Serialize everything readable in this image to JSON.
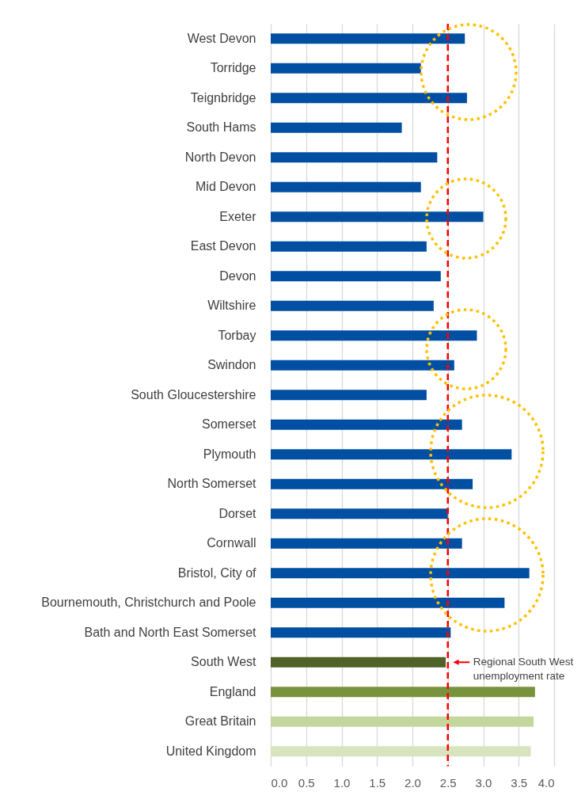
{
  "chart_data": {
    "type": "bar",
    "orientation": "horizontal",
    "categories": [
      "West Devon",
      "Torridge",
      "Teignbridge",
      "South Hams",
      "North Devon",
      "Mid Devon",
      "Exeter",
      "East Devon",
      "Devon",
      "Wiltshire",
      "Torbay",
      "Swindon",
      "South Gloucestershire",
      "Somerset",
      "Plymouth",
      "North Somerset",
      "Dorset",
      "Cornwall",
      "Bristol, City of",
      "Bournemouth, Christchurch and Poole",
      "Bath and North East Somerset",
      "South West",
      "England",
      "Great Britain",
      "United Kingdom"
    ],
    "values": [
      2.74,
      2.12,
      2.77,
      1.85,
      2.35,
      2.12,
      3.0,
      2.2,
      2.4,
      2.3,
      2.91,
      2.59,
      2.2,
      2.7,
      3.4,
      2.85,
      2.5,
      2.7,
      3.65,
      3.3,
      2.54,
      2.47,
      3.73,
      3.71,
      3.67
    ],
    "colors": [
      "#004fa3",
      "#004fa3",
      "#004fa3",
      "#004fa3",
      "#004fa3",
      "#004fa3",
      "#004fa3",
      "#004fa3",
      "#004fa3",
      "#004fa3",
      "#004fa3",
      "#004fa3",
      "#004fa3",
      "#004fa3",
      "#004fa3",
      "#004fa3",
      "#004fa3",
      "#004fa3",
      "#004fa3",
      "#004fa3",
      "#004fa3",
      "#4f6228",
      "#77933c",
      "#c3d69b",
      "#d7e4bd"
    ],
    "xlim": [
      0,
      4
    ],
    "xticks": [
      {
        "value": 0,
        "label": "0.0"
      },
      0.5,
      {
        "value": 1,
        "label": "1.0"
      },
      1.5,
      {
        "value": 2,
        "label": "2.0"
      },
      2.5,
      {
        "value": 3,
        "label": "3.0"
      },
      3.5,
      {
        "value": 4,
        "label": "4.0"
      }
    ],
    "grid": "x",
    "ref_lines": [
      {
        "axis": "x",
        "value": 2.5,
        "color": "#ff0000",
        "line_style": "dashed"
      }
    ],
    "annotations": [
      {
        "text": "Regional South West unemployment rate",
        "x": 2.5,
        "y": "South West"
      }
    ]
  }
}
